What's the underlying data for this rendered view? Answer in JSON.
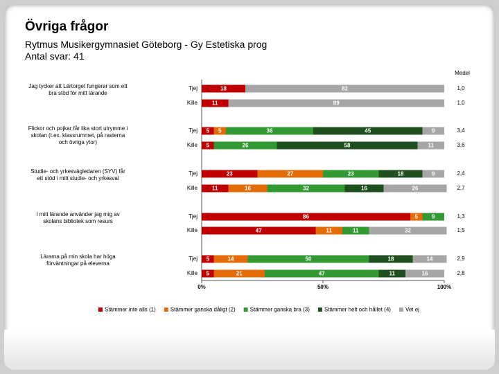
{
  "header": {
    "title": "Övriga frågor",
    "subtitle": "Rytmus Musikergymnasiet Göteborg - Gy Estetiska prog",
    "count": "Antal svar: 41"
  },
  "chart_data": {
    "type": "stacked-hbar",
    "questions": [
      "Jag tycker att Lärtorget fungerar som ett bra stöd för mitt lärande",
      "Flickor och pojkar får lika stort utrymme i skolan (t.ex. klassrummet, på rasterna och övriga ytor)",
      "Studie- och yrkesvägledaren (SYV) får ett stöd i mitt studie- och yrkesval",
      "I mitt lärande använder jag mig av skolans bibliotek som resurs",
      "Lärarna på min skola har höga förväntningar på eleverna"
    ],
    "categories": [
      "Tjej",
      "Kille",
      "Tjej",
      "Kille",
      "Tjej",
      "Kille",
      "Tjej",
      "Kille",
      "Tjej",
      "Kille"
    ],
    "series": [
      {
        "name": "Stämmer inte alls (1)",
        "color": "#c00000",
        "values": [
          18,
          11,
          5,
          5,
          23,
          11,
          86,
          47,
          5,
          5
        ]
      },
      {
        "name": "Stämmer ganska dåligt (2)",
        "color": "#e36c09",
        "values": [
          0,
          0,
          5,
          0,
          27,
          16,
          5,
          11,
          14,
          21
        ]
      },
      {
        "name": "Stämmer ganska bra (3)",
        "color": "#339933",
        "values": [
          0,
          0,
          36,
          26,
          23,
          32,
          9,
          11,
          50,
          47
        ]
      },
      {
        "name": "Stämmer helt och hållet (4)",
        "color": "#1f4e1f",
        "values": [
          0,
          0,
          45,
          58,
          18,
          16,
          0,
          0,
          18,
          11
        ]
      },
      {
        "name": "Vet ej",
        "color": "#a6a6a6",
        "values": [
          82,
          89,
          9,
          11,
          9,
          26,
          0,
          32,
          14,
          16
        ]
      }
    ],
    "mean_title": "Medel",
    "means": [
      {
        "value": 1.0,
        "label": "1,0"
      },
      {
        "value": 1.0,
        "label": "1,0"
      },
      {
        "value": 3.4,
        "label": "3,4"
      },
      {
        "value": 3.6,
        "label": "3,6"
      },
      {
        "value": 2.4,
        "label": "2,4"
      },
      {
        "value": 2.7,
        "label": "2,7"
      },
      {
        "value": 1.3,
        "label": "1,3"
      },
      {
        "value": 1.5,
        "label": "1,5"
      },
      {
        "value": 2.9,
        "label": "2,9"
      },
      {
        "value": 2.8,
        "label": "2,8"
      }
    ],
    "xlim": [
      0,
      100
    ],
    "xticks": [
      {
        "value": 0,
        "label": "0%"
      },
      {
        "value": 50,
        "label": "50%"
      },
      {
        "value": 100,
        "label": "100%"
      }
    ]
  }
}
